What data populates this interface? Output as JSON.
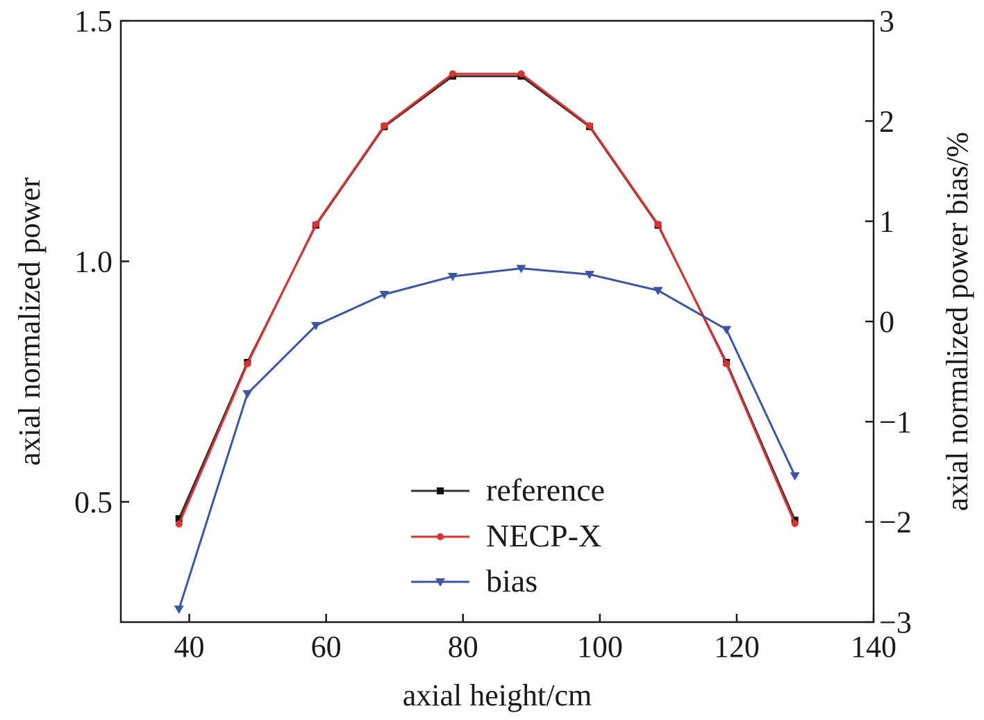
{
  "chart_data": {
    "type": "line",
    "title": "",
    "xlabel": "axial height/cm",
    "ylabel_left": "axial normalized power",
    "ylabel_right": "axial normalized power bias/%",
    "xlim": [
      30,
      140
    ],
    "ylim_left": [
      0.25,
      1.5
    ],
    "ylim_right": [
      -3,
      3
    ],
    "x_ticks": [
      40,
      60,
      80,
      100,
      120,
      140
    ],
    "y_left_ticks": [
      0.5,
      1.0,
      1.5
    ],
    "y_left_tick_labels": [
      "0.5",
      "1.0",
      "1.5"
    ],
    "y_right_ticks": [
      -3,
      -2,
      -1,
      0,
      1,
      2,
      3
    ],
    "y_right_tick_labels": [
      "−3",
      "−2",
      "−1",
      "0",
      "1",
      "2",
      "3"
    ],
    "grid": false,
    "legend_position": "bottom-center",
    "x": [
      38.5,
      48.5,
      58.5,
      68.5,
      78.5,
      88.5,
      98.5,
      108.5,
      118.5,
      128.5
    ],
    "series": [
      {
        "name": "reference",
        "axis": "left",
        "color": "#333333",
        "marker": "square",
        "values": [
          0.465,
          0.79,
          1.075,
          1.28,
          1.385,
          1.385,
          1.28,
          1.075,
          0.79,
          0.462
        ]
      },
      {
        "name": "NECP-X",
        "axis": "left",
        "color": "#e03030",
        "marker": "circle",
        "values": [
          0.454,
          0.787,
          1.077,
          1.282,
          1.39,
          1.39,
          1.282,
          1.077,
          0.787,
          0.455
        ]
      },
      {
        "name": "bias",
        "axis": "right",
        "color": "#3b55a8",
        "marker": "triangle-down",
        "values": [
          -2.87,
          -0.72,
          -0.04,
          0.27,
          0.45,
          0.53,
          0.47,
          0.31,
          -0.08,
          -1.54
        ]
      }
    ]
  }
}
